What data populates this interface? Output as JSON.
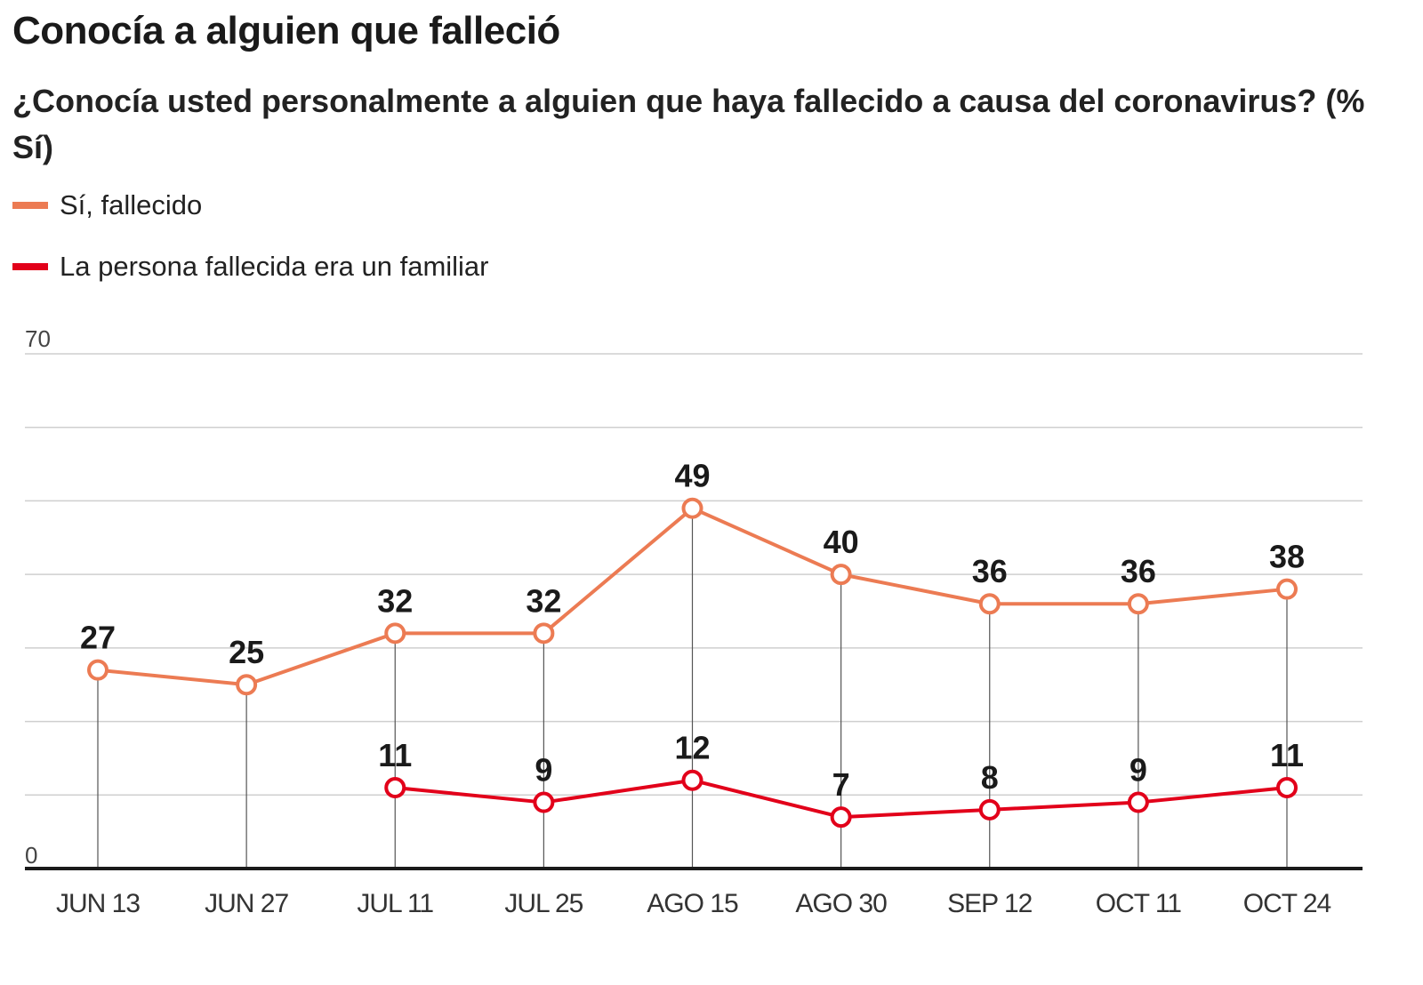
{
  "chart_data": {
    "type": "line",
    "title": "Conocía a alguien que falleció",
    "subtitle": "¿Conocía usted personalmente a alguien que haya fallecido a causa del coronavirus? (% Sí)",
    "categories": [
      "JUN 13",
      "JUN 27",
      "JUL 11",
      "JUL 25",
      "AGO 15",
      "AGO 30",
      "SEP 12",
      "OCT 11",
      "OCT 24"
    ],
    "ylim": [
      0,
      70
    ],
    "y_tick_labels": [
      "70",
      "0"
    ],
    "grid": true,
    "legend_position": "top-left",
    "series": [
      {
        "name": "Sí, fallecido",
        "color": "#ec7b53",
        "values": [
          27,
          25,
          32,
          32,
          49,
          40,
          36,
          36,
          38
        ]
      },
      {
        "name": "La persona fallecida  era un familiar",
        "color": "#e2001a",
        "values": [
          null,
          null,
          11,
          9,
          12,
          7,
          8,
          9,
          11
        ]
      }
    ]
  }
}
